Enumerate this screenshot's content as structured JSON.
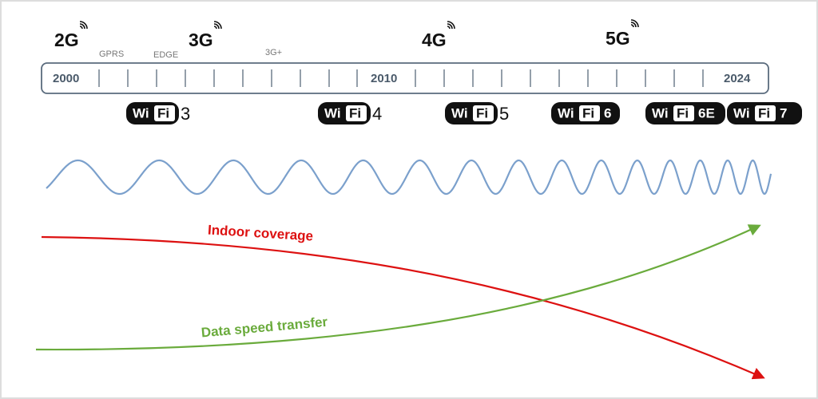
{
  "generations": [
    {
      "label": "2G"
    },
    {
      "label": "3G"
    },
    {
      "label": "4G"
    },
    {
      "label": "5G"
    }
  ],
  "technologies": [
    "GPRS",
    "EDGE",
    "3G+"
  ],
  "years": [
    "2000",
    "2010",
    "2024"
  ],
  "wifi_brand": {
    "wi": "Wi",
    "fi": "Fi"
  },
  "wifi_versions": [
    "3",
    "4",
    "5",
    "6",
    "6E",
    "7"
  ],
  "curves": {
    "indoor": "Indoor coverage",
    "speed": "Data speed transfer"
  }
}
